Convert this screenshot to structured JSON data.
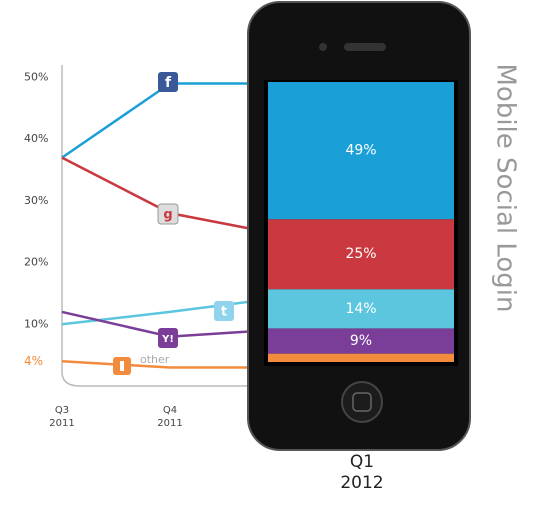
{
  "chart_data": {
    "type": "line",
    "title": "Mobile Social Login",
    "categories": [
      "Q3 2011",
      "Q4 2011",
      "Q1 2012"
    ],
    "series": [
      {
        "color": "#1a9fd6",
        "values": [
          37,
          49,
          49
        ],
        "value_labels": [
          null,
          null,
          "49%"
        ]
      },
      {
        "color": "#c9393f",
        "values": [
          37,
          28,
          25
        ],
        "value_labels": [
          null,
          null,
          "25%"
        ]
      },
      {
        "color": "#5bc6de",
        "values": [
          10,
          12,
          14
        ],
        "value_labels": [
          null,
          null,
          "14%"
        ]
      },
      {
        "color": "#7b3e98",
        "values": [
          12,
          8,
          9
        ],
        "value_labels": [
          null,
          null,
          "9%"
        ]
      },
      {
        "name": "other",
        "color": "#f28b3c",
        "values": [
          4,
          3,
          3
        ],
        "value_labels": [
          "4%",
          null,
          null
        ]
      }
    ],
    "ylim": [
      0,
      52
    ],
    "yticks": [
      {
        "value": 10,
        "label": "10%"
      },
      {
        "value": 20,
        "label": "20%"
      },
      {
        "value": 30,
        "label": "30%"
      },
      {
        "value": 40,
        "label": "40%"
      },
      {
        "value": 50,
        "label": "50%"
      }
    ]
  }
}
